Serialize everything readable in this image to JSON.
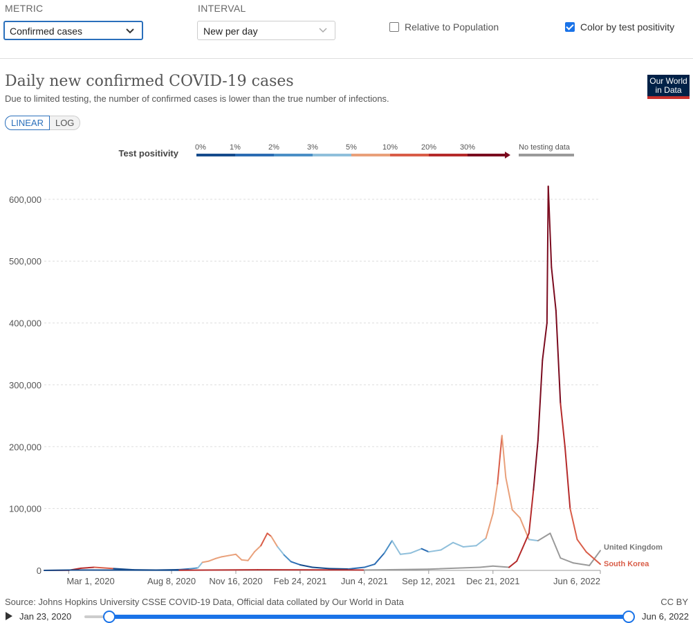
{
  "controls": {
    "metric_label": "METRIC",
    "metric_value": "Confirmed cases",
    "interval_label": "INTERVAL",
    "interval_value": "New per day",
    "relative_label": "Relative to Population",
    "relative_checked": false,
    "color_label": "Color by test positivity",
    "color_checked": true
  },
  "header": {
    "title": "Daily new confirmed COVID-19 cases",
    "subtitle": "Due to limited testing, the number of confirmed cases is lower than the true number of infections.",
    "logo_line1": "Our World",
    "logo_line2": "in Data",
    "scale_linear": "LINEAR",
    "scale_log": "LOG"
  },
  "legend": {
    "title": "Test positivity",
    "stops": [
      {
        "label": "0%",
        "color": "#154b8c"
      },
      {
        "label": "1%",
        "color": "#2b6cb3"
      },
      {
        "label": "2%",
        "color": "#4a8fc6"
      },
      {
        "label": "3%",
        "color": "#8fbfdb"
      },
      {
        "label": "5%",
        "color": "#e9a07a"
      },
      {
        "label": "10%",
        "color": "#d95d48"
      },
      {
        "label": "20%",
        "color": "#b52a2a"
      },
      {
        "label": "30%",
        "color": "#7a0a1e"
      }
    ],
    "no_data_label": "No testing data",
    "no_data_color": "#9a9a9a"
  },
  "chart_data": {
    "type": "line",
    "title": "Daily new confirmed COVID-19 cases",
    "xlabel": "",
    "ylabel": "",
    "x_ticks": [
      "Mar 1, 2020",
      "Aug 8, 2020",
      "Nov 16, 2020",
      "Feb 24, 2021",
      "Jun 4, 2021",
      "Sep 12, 2021",
      "Dec 21, 2021",
      "Jun 6, 2022"
    ],
    "x_tick_dates": [
      "2020-03-01",
      "2020-08-08",
      "2020-11-16",
      "2021-02-24",
      "2021-06-04",
      "2021-09-12",
      "2021-12-21",
      "2022-06-06"
    ],
    "y_ticks": [
      "0",
      "100,000",
      "200,000",
      "300,000",
      "400,000",
      "500,000",
      "600,000"
    ],
    "ylim": [
      0,
      620000
    ],
    "xlim": [
      "2020-01-23",
      "2022-06-06"
    ],
    "grid": true,
    "series": [
      {
        "name": "United Kingdom",
        "label_color": "#777777",
        "points": [
          [
            "2020-01-23",
            0,
            "#9a9a9a"
          ],
          [
            "2020-03-01",
            100,
            "#b52a2a"
          ],
          [
            "2020-03-20",
            3500,
            "#b52a2a"
          ],
          [
            "2020-04-10",
            5000,
            "#b52a2a"
          ],
          [
            "2020-05-10",
            3000,
            "#d95d48"
          ],
          [
            "2020-06-10",
            1000,
            "#154b8c"
          ],
          [
            "2020-07-15",
            600,
            "#154b8c"
          ],
          [
            "2020-08-20",
            1200,
            "#154b8c"
          ],
          [
            "2020-09-05",
            2500,
            "#2b6cb3"
          ],
          [
            "2020-09-18",
            4000,
            "#4a8fc6"
          ],
          [
            "2020-09-25",
            13000,
            "#8fbfdb"
          ],
          [
            "2020-10-05",
            15000,
            "#e9a07a"
          ],
          [
            "2020-10-15",
            19000,
            "#e9a07a"
          ],
          [
            "2020-10-25",
            22000,
            "#e9a07a"
          ],
          [
            "2020-11-05",
            24000,
            "#e9a07a"
          ],
          [
            "2020-11-16",
            26000,
            "#e9a07a"
          ],
          [
            "2020-11-25",
            17000,
            "#e9a07a"
          ],
          [
            "2020-12-05",
            16000,
            "#e9a07a"
          ],
          [
            "2020-12-15",
            30000,
            "#e9a07a"
          ],
          [
            "2020-12-25",
            40000,
            "#e9a07a"
          ],
          [
            "2021-01-04",
            60000,
            "#d95d48"
          ],
          [
            "2021-01-10",
            55000,
            "#d95d48"
          ],
          [
            "2021-01-20",
            38000,
            "#e9a07a"
          ],
          [
            "2021-01-30",
            25000,
            "#8fbfdb"
          ],
          [
            "2021-02-10",
            14000,
            "#4a8fc6"
          ],
          [
            "2021-02-24",
            9000,
            "#2b6cb3"
          ],
          [
            "2021-03-15",
            5000,
            "#154b8c"
          ],
          [
            "2021-04-10",
            3000,
            "#154b8c"
          ],
          [
            "2021-05-10",
            2200,
            "#154b8c"
          ],
          [
            "2021-06-04",
            5000,
            "#2b6cb3"
          ],
          [
            "2021-06-20",
            10000,
            "#2b6cb3"
          ],
          [
            "2021-07-05",
            28000,
            "#2b6cb3"
          ],
          [
            "2021-07-17",
            48000,
            "#4a8fc6"
          ],
          [
            "2021-07-30",
            26000,
            "#8fbfdb"
          ],
          [
            "2021-08-15",
            28000,
            "#8fbfdb"
          ],
          [
            "2021-09-01",
            35000,
            "#8fbfdb"
          ],
          [
            "2021-09-12",
            30000,
            "#2b6cb3"
          ],
          [
            "2021-10-01",
            33000,
            "#8fbfdb"
          ],
          [
            "2021-10-20",
            45000,
            "#8fbfdb"
          ],
          [
            "2021-11-05",
            38000,
            "#8fbfdb"
          ],
          [
            "2021-11-25",
            40000,
            "#8fbfdb"
          ],
          [
            "2021-12-10",
            52000,
            "#8fbfdb"
          ],
          [
            "2021-12-21",
            92000,
            "#e9a07a"
          ],
          [
            "2021-12-28",
            140000,
            "#e9a07a"
          ],
          [
            "2022-01-04",
            218000,
            "#d95d48"
          ],
          [
            "2022-01-10",
            150000,
            "#e9a07a"
          ],
          [
            "2022-01-20",
            98000,
            "#e9a07a"
          ],
          [
            "2022-02-01",
            85000,
            "#e9a07a"
          ],
          [
            "2022-02-15",
            50000,
            "#e9a07a"
          ],
          [
            "2022-03-01",
            48000,
            "#8fbfdb"
          ],
          [
            "2022-03-20",
            60000,
            "#9a9a9a"
          ],
          [
            "2022-04-05",
            20000,
            "#9a9a9a"
          ],
          [
            "2022-04-25",
            12000,
            "#9a9a9a"
          ],
          [
            "2022-05-20",
            8000,
            "#9a9a9a"
          ],
          [
            "2022-06-06",
            32000,
            "#9a9a9a"
          ]
        ]
      },
      {
        "name": "South Korea",
        "label_color": "#d95d48",
        "points": [
          [
            "2020-01-23",
            0,
            "#154b8c"
          ],
          [
            "2020-03-01",
            600,
            "#154b8c"
          ],
          [
            "2020-08-20",
            300,
            "#154b8c"
          ],
          [
            "2020-12-20",
            1000,
            "#b52a2a"
          ],
          [
            "2021-06-04",
            600,
            "#b52a2a"
          ],
          [
            "2021-09-12",
            2000,
            "#9a9a9a"
          ],
          [
            "2021-12-01",
            5000,
            "#9a9a9a"
          ],
          [
            "2021-12-21",
            7000,
            "#9a9a9a"
          ],
          [
            "2022-01-15",
            5000,
            "#9a9a9a"
          ],
          [
            "2022-01-27",
            15000,
            "#b52a2a"
          ],
          [
            "2022-02-05",
            36000,
            "#b52a2a"
          ],
          [
            "2022-02-15",
            60000,
            "#b52a2a"
          ],
          [
            "2022-02-22",
            130000,
            "#b52a2a"
          ],
          [
            "2022-03-01",
            210000,
            "#7a0a1e"
          ],
          [
            "2022-03-08",
            340000,
            "#7a0a1e"
          ],
          [
            "2022-03-15",
            400000,
            "#7a0a1e"
          ],
          [
            "2022-03-17",
            621000,
            "#7a0a1e"
          ],
          [
            "2022-03-22",
            490000,
            "#7a0a1e"
          ],
          [
            "2022-03-29",
            420000,
            "#7a0a1e"
          ],
          [
            "2022-04-05",
            270000,
            "#7a0a1e"
          ],
          [
            "2022-04-12",
            200000,
            "#b52a2a"
          ],
          [
            "2022-04-20",
            100000,
            "#b52a2a"
          ],
          [
            "2022-05-01",
            50000,
            "#d95d48"
          ],
          [
            "2022-05-15",
            30000,
            "#d95d48"
          ],
          [
            "2022-06-06",
            10000,
            "#d95d48"
          ]
        ]
      }
    ]
  },
  "footer": {
    "source": "Source: Johns Hopkins University CSSE COVID-19 Data, Official data collated by Our World in Data",
    "license": "CC BY"
  },
  "timeline": {
    "start": "Jan 23, 2020",
    "end": "Jun 6, 2022"
  }
}
